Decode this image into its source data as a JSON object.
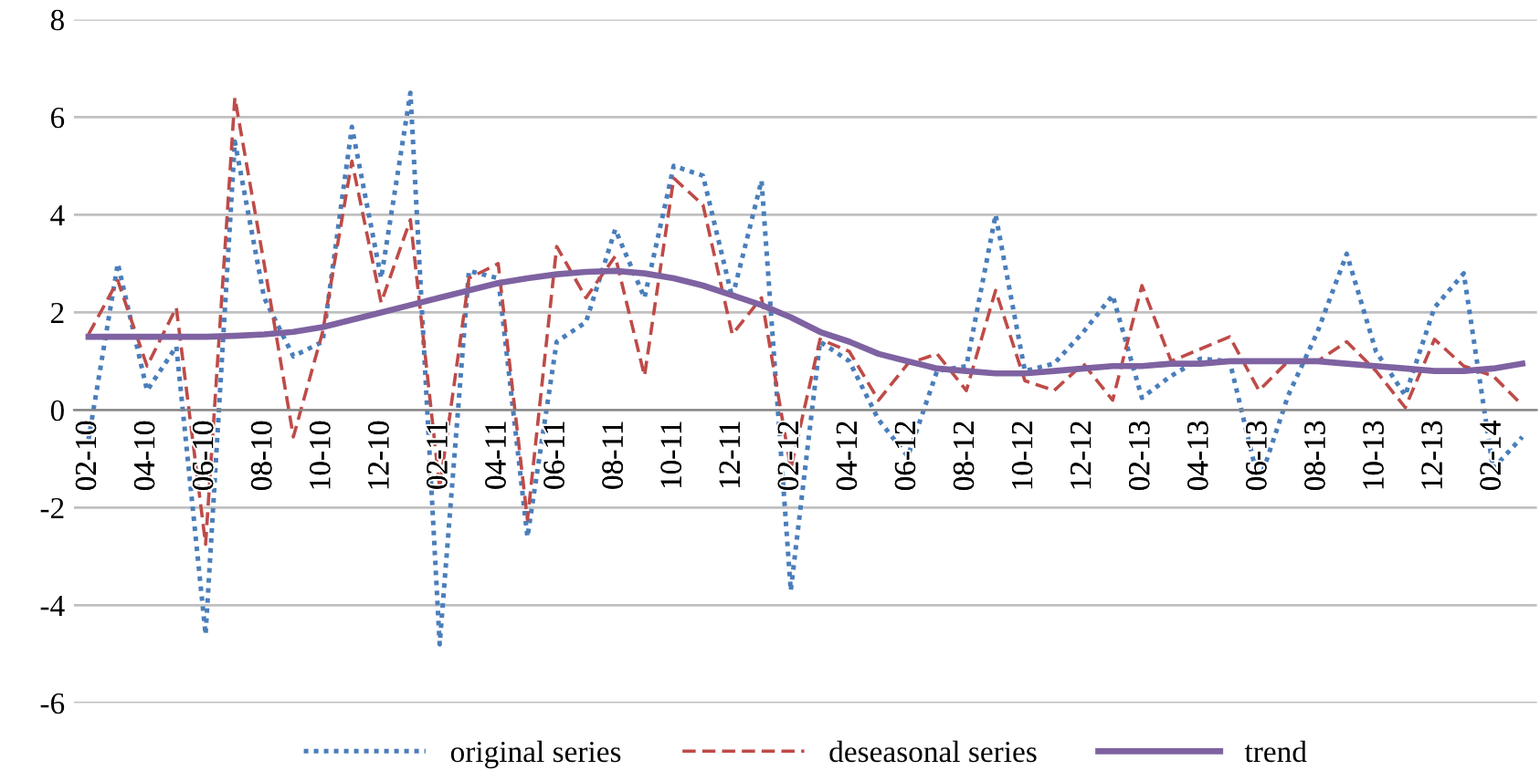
{
  "chart_data": {
    "type": "line",
    "categories": [
      "02-10",
      null,
      "04-10",
      null,
      "06-10",
      null,
      "08-10",
      null,
      "10-10",
      null,
      "12-10",
      null,
      "02-11",
      null,
      "04-11",
      null,
      "06-11",
      null,
      "08-11",
      null,
      "10-11",
      null,
      "12-11",
      null,
      "02-12",
      null,
      "04-12",
      null,
      "06-12",
      null,
      "08-12",
      null,
      "10-12",
      null,
      "12-12",
      null,
      "02-13",
      null,
      "04-13",
      null,
      "06-13",
      null,
      "08-13",
      null,
      "10-13",
      null,
      "12-13",
      null,
      "02-14",
      null
    ],
    "series": [
      {
        "name": "original series",
        "color": "#4a7ebb",
        "line_style": "dotted",
        "values": [
          -0.6,
          3.0,
          0.4,
          1.3,
          -4.6,
          5.5,
          2.3,
          1.1,
          1.4,
          5.8,
          2.7,
          6.5,
          -4.8,
          2.85,
          2.7,
          -2.6,
          1.4,
          1.8,
          3.7,
          2.3,
          5.0,
          4.8,
          2.3,
          4.7,
          -3.7,
          1.4,
          1.0,
          -0.2,
          -0.95,
          0.8,
          0.9,
          4.0,
          0.8,
          0.95,
          1.6,
          2.35,
          0.25,
          0.7,
          1.05,
          1.0,
          -1.5,
          0.3,
          1.6,
          3.2,
          1.2,
          0.3,
          2.1,
          2.8,
          -1.2,
          -0.55
        ]
      },
      {
        "name": "deseasonal series",
        "color": "#be4b48",
        "line_style": "dashed",
        "values": [
          1.55,
          2.65,
          0.9,
          2.1,
          -2.75,
          6.4,
          3.0,
          -0.55,
          1.6,
          5.1,
          2.2,
          3.9,
          -1.6,
          2.7,
          3.0,
          -2.25,
          3.35,
          2.3,
          3.15,
          0.7,
          4.75,
          4.2,
          1.55,
          2.3,
          -1.2,
          1.45,
          1.2,
          0.2,
          0.95,
          1.15,
          0.4,
          2.45,
          0.6,
          0.4,
          0.95,
          0.2,
          2.55,
          1.0,
          1.25,
          1.5,
          0.4,
          1.0,
          1.0,
          1.4,
          0.8,
          0.05,
          1.45,
          0.9,
          0.7,
          0.1
        ]
      },
      {
        "name": "trend",
        "color": "#7e62a1",
        "line_style": "solid",
        "values": [
          1.5,
          1.5,
          1.5,
          1.5,
          1.5,
          1.52,
          1.55,
          1.6,
          1.7,
          1.85,
          2.0,
          2.15,
          2.3,
          2.45,
          2.6,
          2.7,
          2.78,
          2.83,
          2.85,
          2.8,
          2.7,
          2.55,
          2.35,
          2.15,
          1.9,
          1.6,
          1.4,
          1.15,
          1.0,
          0.85,
          0.8,
          0.75,
          0.75,
          0.8,
          0.85,
          0.9,
          0.9,
          0.95,
          0.95,
          1.0,
          1.0,
          1.0,
          1.0,
          0.95,
          0.9,
          0.85,
          0.8,
          0.8,
          0.85,
          0.95
        ]
      }
    ],
    "ylim": [
      -6,
      8
    ],
    "yticks": [
      -6,
      -4,
      -2,
      0,
      2,
      4,
      6,
      8
    ],
    "grid": "y",
    "legend": "bottom",
    "marker": "none"
  }
}
